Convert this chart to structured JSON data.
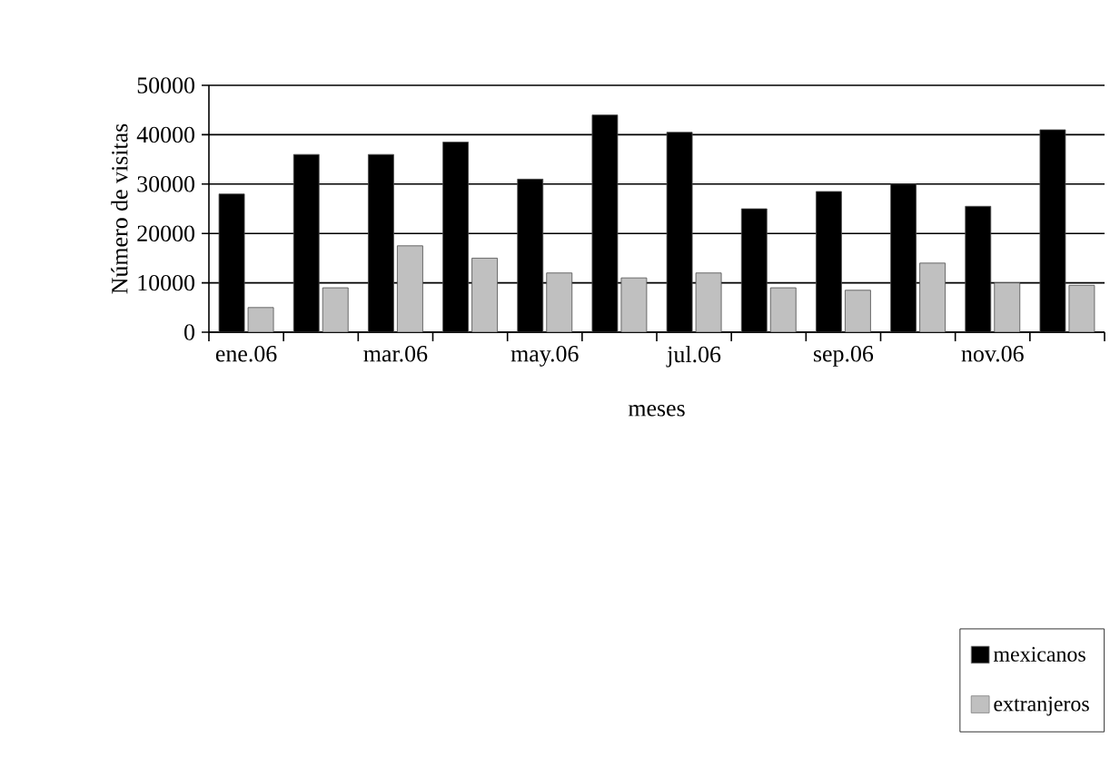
{
  "chart_data": {
    "type": "bar",
    "xlabel": "meses",
    "ylabel": "Número de visitas",
    "categories": [
      "ene.06",
      null,
      "mar.06",
      null,
      "may.06",
      null,
      "jul.06",
      null,
      "sep.06",
      null,
      "nov.06",
      null
    ],
    "series": [
      {
        "name": "mexicanos",
        "color": "#000000",
        "values": [
          28000,
          36000,
          36000,
          38500,
          31000,
          44000,
          40500,
          25000,
          28500,
          30000,
          25500,
          41000
        ]
      },
      {
        "name": "extranjeros",
        "color": "#c0c0c0",
        "values": [
          5000,
          9000,
          17500,
          15000,
          12000,
          11000,
          12000,
          9000,
          8500,
          14000,
          10000,
          9500
        ]
      }
    ],
    "ylim": [
      0,
      50000
    ],
    "yticks": [
      0,
      10000,
      20000,
      30000,
      40000,
      50000
    ],
    "grid": "y",
    "legend": "bottom right"
  }
}
